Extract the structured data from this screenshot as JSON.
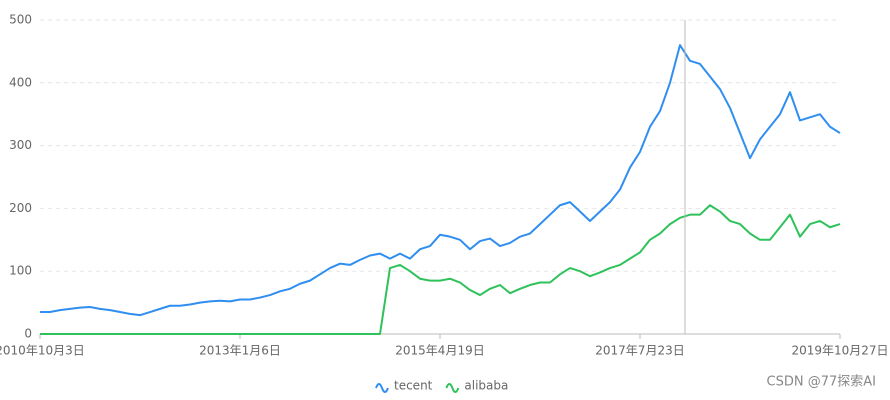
{
  "chart_data": {
    "type": "line",
    "categories": [
      "2010年10月3日",
      null,
      null,
      null,
      null,
      null,
      null,
      null,
      null,
      null,
      null,
      null,
      null,
      null,
      null,
      null,
      null,
      null,
      null,
      null,
      "2013年1月6日",
      null,
      null,
      null,
      null,
      null,
      null,
      null,
      null,
      null,
      null,
      null,
      null,
      null,
      null,
      null,
      null,
      null,
      null,
      null,
      "2015年4月19日",
      null,
      null,
      null,
      null,
      null,
      null,
      null,
      null,
      null,
      null,
      null,
      null,
      null,
      null,
      null,
      null,
      null,
      null,
      null,
      "2017年7月23日",
      null,
      null,
      null,
      null,
      null,
      null,
      null,
      null,
      null,
      null,
      null,
      null,
      null,
      null,
      null,
      null,
      null,
      null,
      null,
      "2019年10月27日"
    ],
    "series": [
      {
        "name": "tecent",
        "color": "#2f8ef0",
        "values": [
          35,
          35,
          38,
          40,
          42,
          43,
          40,
          38,
          35,
          32,
          30,
          35,
          40,
          45,
          45,
          47,
          50,
          52,
          53,
          52,
          55,
          55,
          58,
          62,
          68,
          72,
          80,
          85,
          95,
          105,
          112,
          110,
          118,
          125,
          128,
          120,
          128,
          120,
          135,
          140,
          158,
          155,
          150,
          135,
          148,
          152,
          140,
          145,
          155,
          160,
          175,
          190,
          205,
          210,
          195,
          180,
          195,
          210,
          230,
          265,
          290,
          330,
          355,
          400,
          460,
          435,
          430,
          410,
          390,
          360,
          320,
          280,
          310,
          330,
          350,
          385,
          340,
          345,
          350,
          330,
          320
        ]
      },
      {
        "name": "alibaba",
        "color": "#2fc25b",
        "values": [
          0,
          0,
          0,
          0,
          0,
          0,
          0,
          0,
          0,
          0,
          0,
          0,
          0,
          0,
          0,
          0,
          0,
          0,
          0,
          0,
          0,
          0,
          0,
          0,
          0,
          0,
          0,
          0,
          0,
          0,
          0,
          0,
          0,
          0,
          0,
          105,
          110,
          100,
          88,
          85,
          85,
          88,
          82,
          70,
          62,
          72,
          78,
          65,
          72,
          78,
          82,
          82,
          95,
          105,
          100,
          92,
          98,
          105,
          110,
          120,
          130,
          150,
          160,
          175,
          185,
          190,
          190,
          205,
          195,
          180,
          175,
          160,
          150,
          150,
          170,
          190,
          155,
          175,
          180,
          170,
          175
        ]
      }
    ],
    "ylim": [
      0,
      500
    ],
    "yticks": [
      0,
      100,
      200,
      300,
      400,
      500
    ],
    "grid": true,
    "watermark": "CSDN @77探索AI"
  }
}
